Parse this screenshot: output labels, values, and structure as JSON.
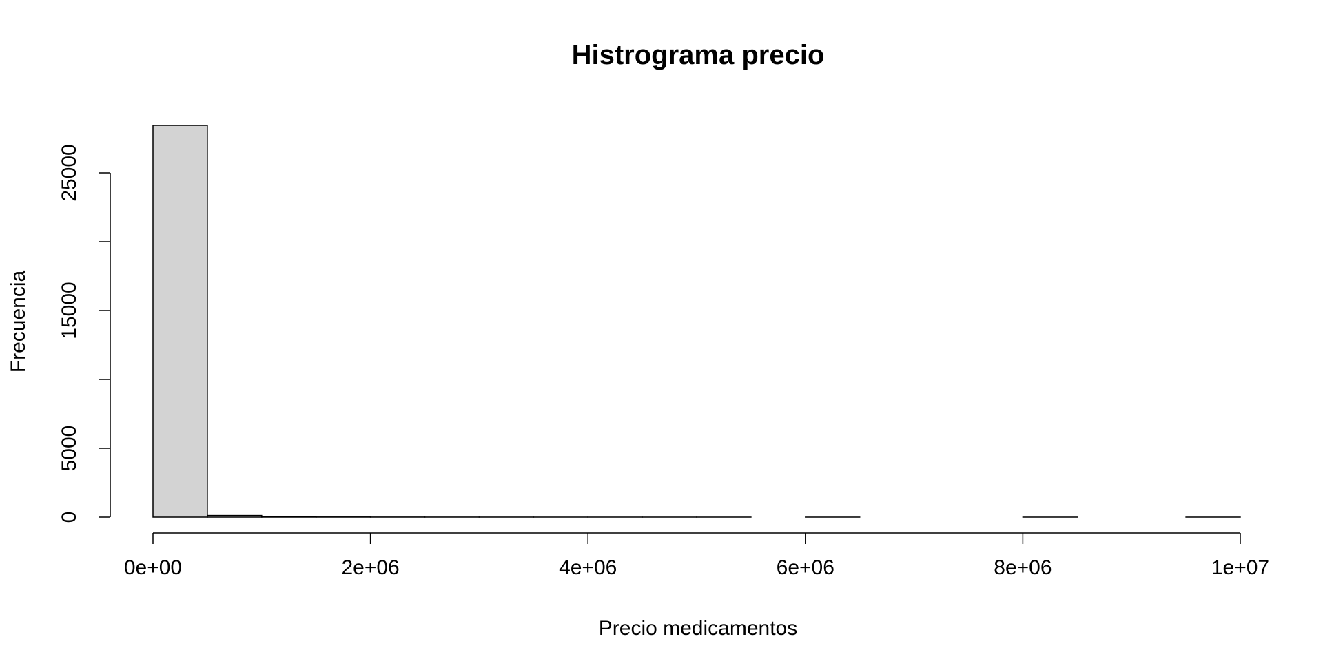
{
  "chart_data": {
    "type": "bar",
    "title": "Histrograma precio",
    "xlabel": "Precio medicamentos",
    "ylabel": "Frecuencia",
    "bin_edges": [
      0,
      500000,
      1000000,
      1500000,
      2000000,
      2500000,
      3000000,
      3500000,
      4000000,
      4500000,
      5000000,
      5500000,
      6000000,
      6500000,
      7000000,
      7500000,
      8000000,
      8500000,
      9000000,
      9500000,
      10000000
    ],
    "values": [
      28450,
      120,
      40,
      10,
      5,
      3,
      2,
      1,
      1,
      1,
      1,
      0,
      1,
      0,
      0,
      0,
      1,
      0,
      0,
      1
    ],
    "xlim": [
      0,
      10000000
    ],
    "ylim": [
      0,
      28450
    ],
    "xticks": [
      0,
      2000000,
      4000000,
      6000000,
      8000000,
      10000000
    ],
    "xtick_labels": [
      "0e+00",
      "2e+06",
      "4e+06",
      "6e+06",
      "8e+06",
      "1e+07"
    ],
    "yticks": [
      0,
      5000,
      10000,
      15000,
      20000,
      25000
    ],
    "ytick_labels": [
      "0",
      "5000",
      "",
      "15000",
      "",
      "25000"
    ],
    "bar_fill": "#d3d3d3",
    "bar_stroke": "#000000",
    "grid": false,
    "legend": "none"
  }
}
